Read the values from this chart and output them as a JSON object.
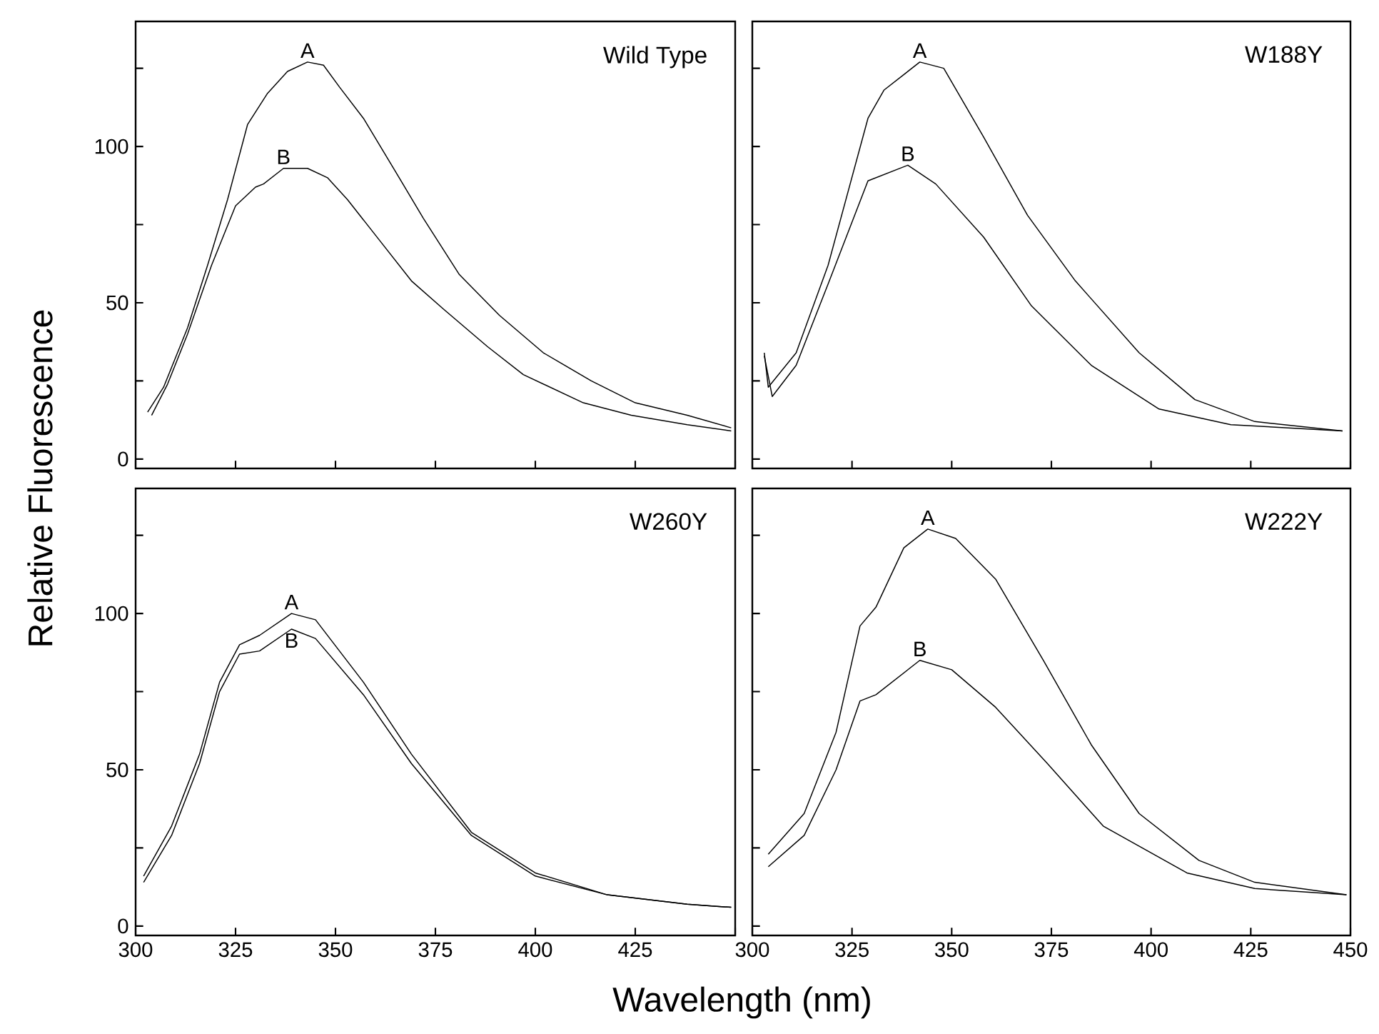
{
  "chart_data": [
    {
      "type": "line",
      "title": "Wild Type",
      "ylabel": "Relative Fluorescence",
      "xlim": [
        300,
        450
      ],
      "ylim": [
        -3,
        140
      ],
      "xticks": [
        300,
        325,
        350,
        375,
        400,
        425,
        {
          "value": 450,
          "label": null
        }
      ],
      "yticks": [
        0,
        {
          "value": 25,
          "label": null
        },
        50,
        {
          "value": 75,
          "label": null
        },
        100,
        {
          "value": 125,
          "label": null
        }
      ],
      "tick_labels": "y",
      "series": [
        {
          "name": "A",
          "color": "#000000",
          "x": [
            303,
            307,
            313,
            318,
            323,
            328,
            333,
            338,
            343,
            347,
            351,
            357,
            365,
            372,
            381,
            391,
            402,
            414,
            425,
            438,
            449
          ],
          "values": [
            15,
            23,
            42,
            62,
            83,
            107,
            117,
            124,
            127,
            126,
            119,
            109,
            92,
            77,
            59,
            46,
            34,
            25,
            18,
            14,
            10
          ]
        },
        {
          "name": "B",
          "color": "#000000",
          "x": [
            304,
            308,
            313,
            319,
            325,
            330,
            332,
            337,
            343,
            348,
            353,
            361,
            369,
            377,
            388,
            397,
            412,
            424,
            438,
            449
          ],
          "values": [
            14,
            24,
            40,
            62,
            81,
            87,
            88,
            93,
            93,
            90,
            83,
            70,
            57,
            48,
            36,
            27,
            18,
            14,
            11,
            9
          ]
        }
      ]
    },
    {
      "type": "line",
      "title": "W188Y",
      "xlim": [
        300,
        450
      ],
      "ylim": [
        -3,
        140
      ],
      "xticks": [
        300,
        325,
        350,
        375,
        400,
        425,
        450
      ],
      "yticks": [
        0,
        {
          "value": 25,
          "label": null
        },
        50,
        {
          "value": 75,
          "label": null
        },
        100,
        {
          "value": 125,
          "label": null
        }
      ],
      "tick_labels": false,
      "series": [
        {
          "name": "A",
          "color": "#000000",
          "x": [
            303,
            304,
            311,
            319,
            329,
            333,
            342,
            348,
            358,
            369,
            381,
            397,
            411,
            426,
            448
          ],
          "values": [
            34,
            23,
            34,
            62,
            109,
            118,
            127,
            125,
            103,
            78,
            57,
            34,
            19,
            12,
            9
          ]
        },
        {
          "name": "B",
          "color": "#000000",
          "x": [
            303,
            305,
            311,
            319,
            329,
            339,
            346,
            358,
            370,
            385,
            402,
            420,
            448
          ],
          "values": [
            33,
            20,
            30,
            56,
            89,
            94,
            88,
            71,
            49,
            30,
            16,
            11,
            9
          ]
        }
      ]
    },
    {
      "type": "line",
      "title": "W260Y",
      "xlabel": "Wavelength (nm)",
      "xlim": [
        300,
        450
      ],
      "ylim": [
        -3,
        140
      ],
      "xticks": [
        300,
        325,
        350,
        375,
        400,
        425,
        {
          "value": 450,
          "label": null
        }
      ],
      "yticks": [
        0,
        {
          "value": 25,
          "label": null
        },
        50,
        {
          "value": 75,
          "label": null
        },
        100,
        {
          "value": 125,
          "label": null
        }
      ],
      "series": [
        {
          "name": "A",
          "color": "#000000",
          "x": [
            302,
            309,
            316,
            321,
            326,
            331,
            339,
            345,
            357,
            369,
            384,
            400,
            418,
            438,
            449
          ],
          "values": [
            16,
            32,
            55,
            78,
            90,
            93,
            100,
            98,
            78,
            55,
            30,
            17,
            10,
            7,
            6
          ]
        },
        {
          "name": "B",
          "color": "#000000",
          "x": [
            302,
            309,
            316,
            321,
            326,
            331,
            339,
            345,
            357,
            369,
            384,
            400,
            418,
            438,
            449
          ],
          "values": [
            14,
            29,
            52,
            75,
            87,
            88,
            95,
            92,
            74,
            52,
            29,
            16,
            10,
            7,
            6
          ]
        }
      ]
    },
    {
      "type": "line",
      "title": "W222Y",
      "xlim": [
        300,
        450
      ],
      "ylim": [
        -3,
        140
      ],
      "xticks": [
        300,
        325,
        350,
        375,
        400,
        425,
        450
      ],
      "yticks": [
        0,
        {
          "value": 25,
          "label": null
        },
        50,
        {
          "value": 75,
          "label": null
        },
        100,
        {
          "value": 125,
          "label": null
        }
      ],
      "tick_labels": "x",
      "series": [
        {
          "name": "A",
          "color": "#000000",
          "x": [
            304,
            313,
            321,
            327,
            331,
            338,
            344,
            351,
            361,
            373,
            385,
            397,
            412,
            426,
            449
          ],
          "values": [
            23,
            36,
            62,
            96,
            102,
            121,
            127,
            124,
            111,
            85,
            58,
            36,
            21,
            14,
            10
          ]
        },
        {
          "name": "B",
          "color": "#000000",
          "x": [
            304,
            313,
            321,
            327,
            331,
            342,
            350,
            361,
            374,
            388,
            409,
            426,
            449
          ],
          "values": [
            19,
            29,
            50,
            72,
            74,
            85,
            82,
            70,
            52,
            32,
            17,
            12,
            10
          ]
        }
      ]
    }
  ]
}
